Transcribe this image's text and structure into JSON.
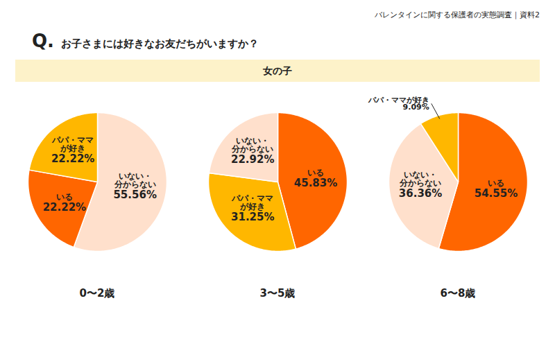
{
  "header": "バレンタインに関する保護者の実態調査｜資料2",
  "question_mark": "Q.",
  "question": "お子さまには好きなお友だちがいますか？",
  "section": "女の子",
  "chart_data": [
    {
      "type": "pie",
      "title": "0〜2歳",
      "categories": [
        "いない・\n分からない",
        "いる",
        "パパ・ママ\nが好き"
      ],
      "values": [
        55.56,
        22.22,
        22.22
      ],
      "value_labels": [
        "55.56%",
        "22.22%",
        "22.22%"
      ],
      "colors": [
        "#ffe0cc",
        "#ff6600",
        "#ffb700"
      ],
      "data_labels": true,
      "tick_labels": false
    },
    {
      "type": "pie",
      "title": "3〜5歳",
      "categories": [
        "いる",
        "パパ・ママ\nが好き",
        "いない・\n分からない"
      ],
      "values": [
        45.83,
        31.25,
        22.92
      ],
      "value_labels": [
        "45.83%",
        "31.25%",
        "22.92%"
      ],
      "colors": [
        "#ff6600",
        "#ffb700",
        "#ffe0cc"
      ],
      "data_labels": true,
      "tick_labels": false
    },
    {
      "type": "pie",
      "title": "6〜8歳",
      "categories": [
        "いる",
        "いない・\n分からない",
        "パパ・ママが好き"
      ],
      "values": [
        54.55,
        36.36,
        9.09
      ],
      "value_labels": [
        "54.55%",
        "36.36%",
        "9.09%"
      ],
      "colors": [
        "#ff6600",
        "#ffe0cc",
        "#ffb700"
      ],
      "data_labels": true,
      "tick_labels": false
    }
  ]
}
